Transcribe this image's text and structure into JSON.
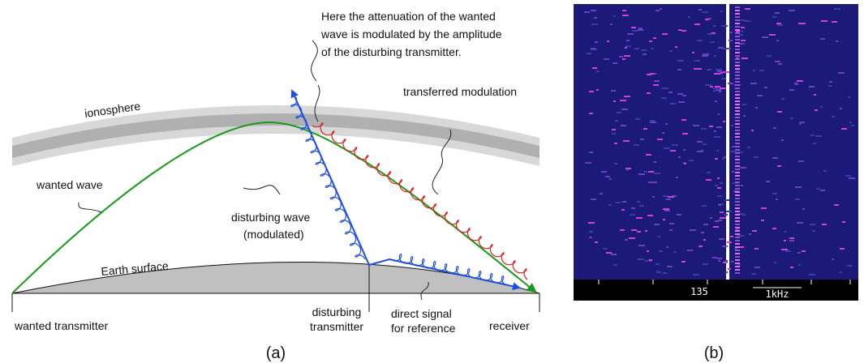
{
  "diagram": {
    "annotation": [
      "Here the attenuation of the wanted",
      "wave is modulated by the amplitude",
      "of the disturbing transmitter."
    ],
    "ionosphere": "ionosphere",
    "transferred_modulation": "transferred modulation",
    "wanted_wave": "wanted wave",
    "disturbing_wave": [
      "disturbing wave",
      "(modulated)"
    ],
    "earth_surface": "Earth surface",
    "wanted_transmitter": "wanted transmitter",
    "disturbing_transmitter": [
      "disturbing",
      "transmitter"
    ],
    "direct_signal": [
      "direct signal",
      "for reference"
    ],
    "receiver": "receiver",
    "caption": "(a)"
  },
  "spectrogram": {
    "frequency_label": "135",
    "scale_label": "1kHz",
    "caption": "(b)"
  }
}
